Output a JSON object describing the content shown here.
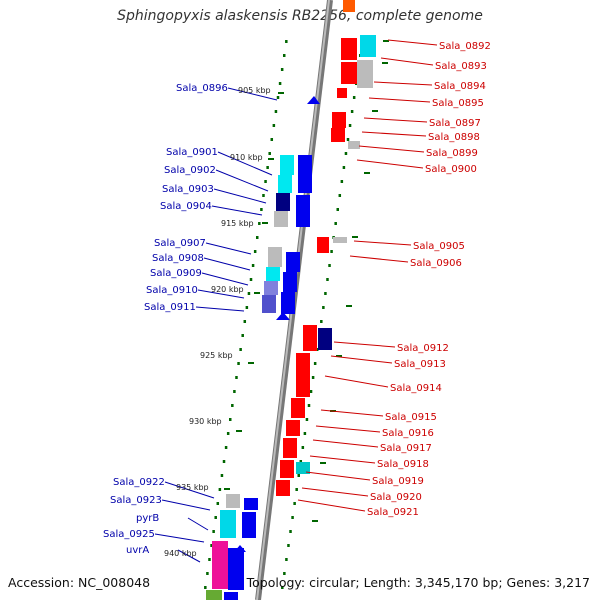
{
  "title": "Sphingopyxis alaskensis RB2256, complete genome",
  "footer": {
    "accession": "Accession: NC_008048",
    "summary": "Topology: circular; Length: 3,345,170 bp; Genes: 3,217"
  },
  "colors": {
    "forward_gene": "#ff0000",
    "reverse_gene": "#0000ee",
    "forward_label": "#cc0000",
    "reverse_label": "#0000aa",
    "backbone": "#999999",
    "tick_dots": "#006600"
  },
  "kbp_ticks": [
    "905 kbp",
    "910 kbp",
    "915 kbp",
    "920 kbp",
    "925 kbp",
    "930 kbp",
    "935 kbp",
    "940 kbp"
  ],
  "left_labels": [
    "Sala_0896",
    "Sala_0901",
    "Sala_0902",
    "Sala_0903",
    "Sala_0904",
    "Sala_0907",
    "Sala_0908",
    "Sala_0909",
    "Sala_0910",
    "Sala_0911",
    "Sala_0922",
    "Sala_0923",
    "pyrB",
    "Sala_0925",
    "uvrA"
  ],
  "right_labels": [
    "Sala_0892",
    "Sala_0893",
    "Sala_0894",
    "Sala_0895",
    "Sala_0897",
    "Sala_0898",
    "Sala_0899",
    "Sala_0900",
    "Sala_0905",
    "Sala_0906",
    "Sala_0912",
    "Sala_0913",
    "Sala_0914",
    "Sala_0915",
    "Sala_0916",
    "Sala_0917",
    "Sala_0918",
    "Sala_0919",
    "Sala_0920",
    "Sala_0921"
  ]
}
